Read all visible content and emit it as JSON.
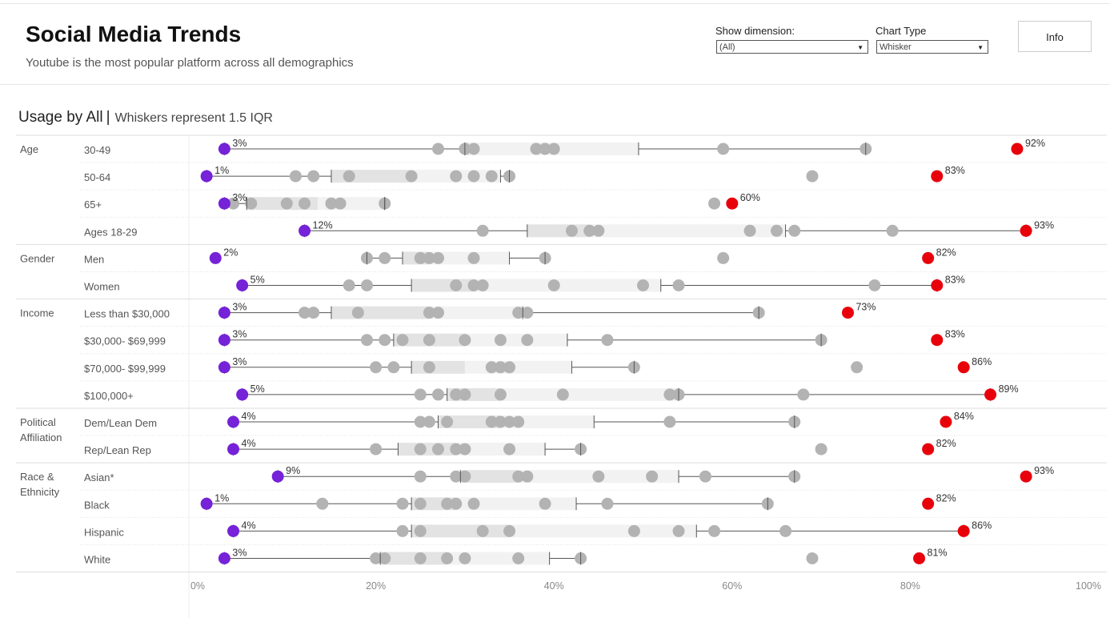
{
  "header": {
    "title": "Social Media Trends",
    "subtitle": "Youtube is the most popular platform across all demographics"
  },
  "controls": {
    "dimension_label": "Show dimension:",
    "dimension_value": "(All)",
    "chart_type_label": "Chart Type",
    "chart_type_value": "Whisker",
    "info_label": "Info"
  },
  "section": {
    "title": "Usage by All",
    "separator": "|",
    "subtitle": "Whiskers represent 1.5 IQR"
  },
  "colors": {
    "min_point": "#7522d8",
    "max_point": "#e8000b",
    "other_point": "#b3b3b3",
    "box_dark": "#e3e3e3",
    "box_light": "#f2f2f2",
    "whisker": "#555555"
  },
  "chart_data": {
    "type": "box-whisker dot plot",
    "value_unit": "%",
    "xlim": [
      0,
      100
    ],
    "xticks": [
      "0%",
      "20%",
      "40%",
      "60%",
      "80%",
      "100%"
    ],
    "groups": [
      {
        "name": "Age",
        "rows": [
          {
            "label": "30-49",
            "min": 3,
            "max": 92,
            "min_label": "3%",
            "max_label": "92%",
            "others": [
              27,
              30,
              31,
              38,
              39,
              40,
              59,
              75
            ],
            "q1": 30,
            "median": 30.5,
            "q3": 49.5,
            "w_low": 3,
            "w_high": 75
          },
          {
            "label": "50-64",
            "min": 1,
            "max": 83,
            "min_label": "1%",
            "max_label": "83%",
            "others": [
              11,
              13,
              17,
              24,
              29,
              31,
              33,
              35,
              69
            ],
            "q1": 15,
            "median": 24,
            "q3": 34,
            "w_low": 1,
            "w_high": 35
          },
          {
            "label": "65+",
            "min": 3,
            "max": 60,
            "min_label": "3%",
            "max_label": "60%",
            "others": [
              4,
              6,
              10,
              12,
              15,
              16,
              21,
              58
            ],
            "q1": 5.5,
            "median": 13.5,
            "q3": 21,
            "w_low": 3,
            "w_high": 21
          },
          {
            "label": "Ages 18-29",
            "min": 12,
            "max": 93,
            "min_label": "12%",
            "max_label": "93%",
            "others": [
              32,
              42,
              44,
              45,
              62,
              65,
              67,
              78
            ],
            "q1": 37,
            "median": 44,
            "q3": 66,
            "w_low": 12,
            "w_high": 93
          }
        ]
      },
      {
        "name": "Gender",
        "rows": [
          {
            "label": "Men",
            "min": 2,
            "max": 82,
            "min_label": "2%",
            "max_label": "82%",
            "others": [
              19,
              21,
              25,
              26,
              27,
              31,
              39,
              59
            ],
            "q1": 23,
            "median": 26,
            "q3": 35,
            "w_low": 19,
            "w_high": 39
          },
          {
            "label": "Women",
            "min": 5,
            "max": 83,
            "min_label": "5%",
            "max_label": "83%",
            "others": [
              17,
              19,
              29,
              31,
              32,
              40,
              50,
              54,
              76
            ],
            "q1": 24,
            "median": 31,
            "q3": 52,
            "w_low": 5,
            "w_high": 83
          }
        ]
      },
      {
        "name": "Income",
        "rows": [
          {
            "label": "Less than $30,000",
            "min": 3,
            "max": 73,
            "min_label": "3%",
            "max_label": "73%",
            "others": [
              12,
              13,
              18,
              26,
              27,
              36,
              37,
              63
            ],
            "q1": 15,
            "median": 26,
            "q3": 36.5,
            "w_low": 3,
            "w_high": 63
          },
          {
            "label": "$30,000- $69,999",
            "min": 3,
            "max": 83,
            "min_label": "3%",
            "max_label": "83%",
            "others": [
              19,
              21,
              23,
              26,
              30,
              34,
              37,
              46,
              70
            ],
            "q1": 22,
            "median": 30,
            "q3": 41.5,
            "w_low": 3,
            "w_high": 70
          },
          {
            "label": "$70,000- $99,999",
            "min": 3,
            "max": 86,
            "min_label": "3%",
            "max_label": "86%",
            "others": [
              20,
              22,
              26,
              33,
              34,
              35,
              49,
              74
            ],
            "q1": 24,
            "median": 30,
            "q3": 42,
            "w_low": 3,
            "w_high": 49
          },
          {
            "label": "$100,000+",
            "min": 5,
            "max": 89,
            "min_label": "5%",
            "max_label": "89%",
            "others": [
              25,
              27,
              29,
              30,
              34,
              41,
              53,
              54,
              68
            ],
            "q1": 28,
            "median": 34,
            "q3": 54,
            "w_low": 5,
            "w_high": 89
          }
        ]
      },
      {
        "name": "Political Affiliation",
        "rows": [
          {
            "label": "Dem/Lean Dem",
            "min": 4,
            "max": 84,
            "min_label": "4%",
            "max_label": "84%",
            "others": [
              25,
              26,
              28,
              33,
              34,
              35,
              36,
              53,
              67
            ],
            "q1": 27,
            "median": 34,
            "q3": 44.5,
            "w_low": 4,
            "w_high": 67
          },
          {
            "label": "Rep/Lean Rep",
            "min": 4,
            "max": 82,
            "min_label": "4%",
            "max_label": "82%",
            "others": [
              20,
              25,
              27,
              29,
              30,
              35,
              43,
              70
            ],
            "q1": 22.5,
            "median": 29,
            "q3": 39,
            "w_low": 4,
            "w_high": 43
          }
        ]
      },
      {
        "name": "Race & Ethnicity",
        "rows": [
          {
            "label": "Asian*",
            "min": 9,
            "max": 93,
            "min_label": "9%",
            "max_label": "93%",
            "others": [
              25,
              29,
              30,
              36,
              37,
              45,
              51,
              57,
              67
            ],
            "q1": 29.5,
            "median": 36,
            "q3": 54,
            "w_low": 9,
            "w_high": 67
          },
          {
            "label": "Black",
            "min": 1,
            "max": 82,
            "min_label": "1%",
            "max_label": "82%",
            "others": [
              14,
              23,
              25,
              28,
              29,
              31,
              39,
              46,
              64
            ],
            "q1": 24,
            "median": 29,
            "q3": 42.5,
            "w_low": 1,
            "w_high": 64
          },
          {
            "label": "Hispanic",
            "min": 4,
            "max": 86,
            "min_label": "4%",
            "max_label": "86%",
            "others": [
              23,
              25,
              32,
              35,
              49,
              54,
              58,
              66
            ],
            "q1": 24,
            "median": 35,
            "q3": 56,
            "w_low": 4,
            "w_high": 86
          },
          {
            "label": "White",
            "min": 3,
            "max": 81,
            "min_label": "3%",
            "max_label": "81%",
            "others": [
              20,
              21,
              25,
              28,
              30,
              36,
              43,
              69
            ],
            "q1": 20.5,
            "median": 28,
            "q3": 39.5,
            "w_low": 3,
            "w_high": 43
          }
        ]
      }
    ]
  }
}
